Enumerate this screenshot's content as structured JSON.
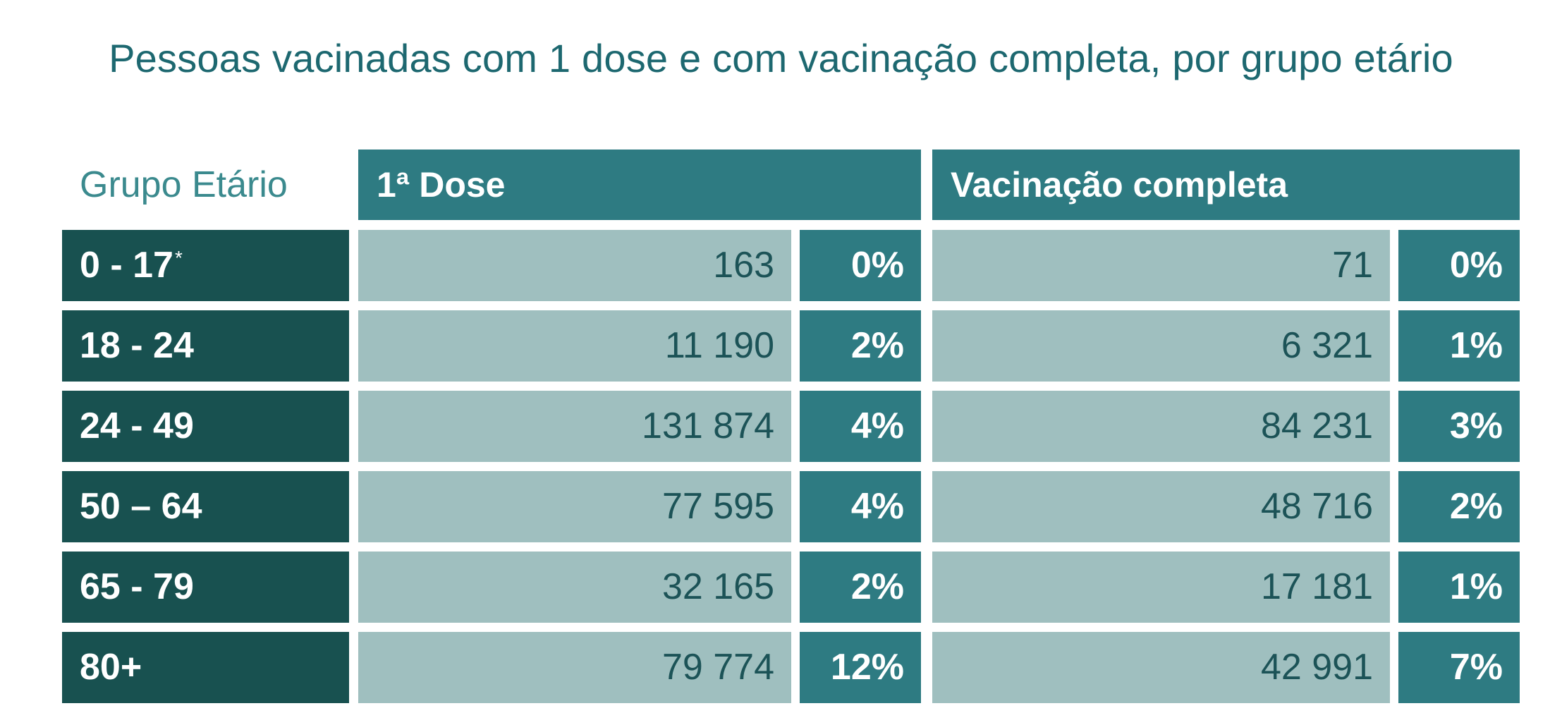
{
  "title": "Pessoas vacinadas com 1 dose e com vacinação completa, por grupo etário",
  "headers": {
    "group": "Grupo Etário",
    "dose1": "1ª Dose",
    "complete": "Vacinação completa"
  },
  "chart_data": {
    "type": "table",
    "title": "Pessoas vacinadas com 1 dose e com vacinação completa, por grupo etário",
    "columns": [
      "Grupo Etário",
      "1ª Dose",
      "1ª Dose %",
      "Vacinação completa",
      "Vacinação completa %"
    ],
    "rows": [
      {
        "age": "0 - 17",
        "age_note": "*",
        "dose1": "163",
        "dose1_pct": "0%",
        "complete": "71",
        "complete_pct": "0%"
      },
      {
        "age": "18 - 24",
        "age_note": "",
        "dose1": "11 190",
        "dose1_pct": "2%",
        "complete": "6 321",
        "complete_pct": "1%"
      },
      {
        "age": "24 - 49",
        "age_note": "",
        "dose1": "131 874",
        "dose1_pct": "4%",
        "complete": "84 231",
        "complete_pct": "3%"
      },
      {
        "age": "50 – 64",
        "age_note": "",
        "dose1": "77 595",
        "dose1_pct": "4%",
        "complete": "48 716",
        "complete_pct": "2%"
      },
      {
        "age": "65 - 79",
        "age_note": "",
        "dose1": "32 165",
        "dose1_pct": "2%",
        "complete": "17 181",
        "complete_pct": "1%"
      },
      {
        "age": "80+",
        "age_note": "",
        "dose1": "79 774",
        "dose1_pct": "12%",
        "complete": "42 991",
        "complete_pct": "7%"
      }
    ]
  },
  "colors": {
    "title": "#1d6870",
    "age_cell": "#185150",
    "header_cell": "#2e7b82",
    "value_cell": "#9fbfbf",
    "value_text": "#1c5357"
  }
}
